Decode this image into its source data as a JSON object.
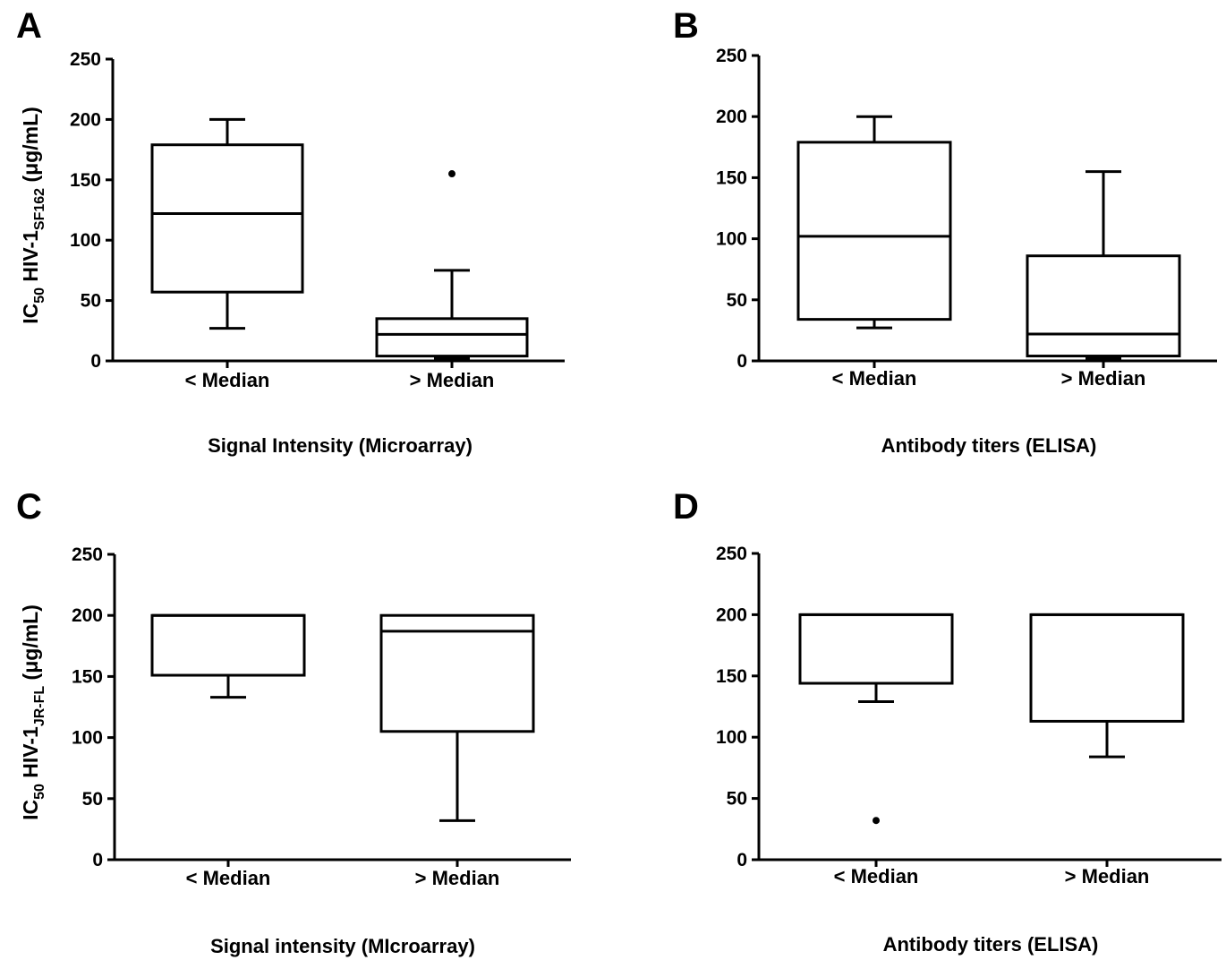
{
  "chart_data": [
    {
      "type": "box",
      "panel": "A",
      "xlabel": "Signal Intensity (Microarray)",
      "ylabel": {
        "prefix": "IC",
        "prefix_sub": "50",
        "main": " HIV-1",
        "main_sub": "SF162",
        "suffix": " (μg/mL)"
      },
      "ylim": [
        0,
        250
      ],
      "yticks": [
        0,
        50,
        100,
        150,
        200,
        250
      ],
      "categories": [
        "< Median",
        "> Median"
      ],
      "boxes": [
        {
          "whisker_low": 27,
          "q1": 57,
          "median": 122,
          "q3": 179,
          "whisker_high": 200,
          "outliers": []
        },
        {
          "whisker_low": 2,
          "q1": 4,
          "median": 22,
          "q3": 35,
          "whisker_high": 75,
          "outliers": [
            155
          ]
        }
      ]
    },
    {
      "type": "box",
      "panel": "B",
      "xlabel": "Antibody titers (ELISA)",
      "ylabel": null,
      "ylim": [
        0,
        250
      ],
      "yticks": [
        0,
        50,
        100,
        150,
        200,
        250
      ],
      "categories": [
        "< Median",
        "> Median"
      ],
      "boxes": [
        {
          "whisker_low": 27,
          "q1": 34,
          "median": 102,
          "q3": 179,
          "whisker_high": 200,
          "outliers": []
        },
        {
          "whisker_low": 2,
          "q1": 4,
          "median": 22,
          "q3": 86,
          "whisker_high": 155,
          "outliers": []
        }
      ]
    },
    {
      "type": "box",
      "panel": "C",
      "xlabel": "Signal intensity (MIcroarray)",
      "ylabel": {
        "prefix": "IC",
        "prefix_sub": "50",
        "main": " HIV-1",
        "main_sub": "JR-FL",
        "suffix": " (μg/mL)"
      },
      "ylim": [
        0,
        250
      ],
      "yticks": [
        0,
        50,
        100,
        150,
        200,
        250
      ],
      "categories": [
        "< Median",
        "> Median"
      ],
      "boxes": [
        {
          "whisker_low": 133,
          "q1": 151,
          "median": 200,
          "q3": 200,
          "whisker_high": 200,
          "outliers": []
        },
        {
          "whisker_low": 32,
          "q1": 105,
          "median": 187,
          "q3": 200,
          "whisker_high": 200,
          "outliers": []
        }
      ]
    },
    {
      "type": "box",
      "panel": "D",
      "xlabel": "Antibody titers (ELISA)",
      "ylabel": null,
      "ylim": [
        0,
        250
      ],
      "yticks": [
        0,
        50,
        100,
        150,
        200,
        250
      ],
      "categories": [
        "< Median",
        "> Median"
      ],
      "boxes": [
        {
          "whisker_low": 129,
          "q1": 144,
          "median": 200,
          "q3": 200,
          "whisker_high": 200,
          "outliers": [
            32
          ]
        },
        {
          "whisker_low": 84,
          "q1": 113,
          "median": 200,
          "q3": 200,
          "whisker_high": 200,
          "outliers": []
        }
      ]
    }
  ]
}
